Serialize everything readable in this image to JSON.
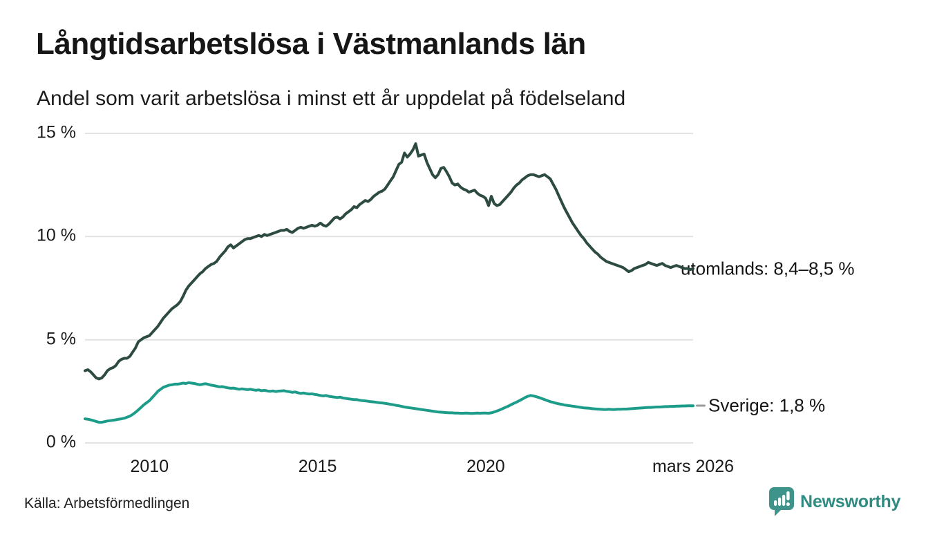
{
  "colors": {
    "utomlands_line": "#2d4b41",
    "sverige_line": "#1e9c8a",
    "grid": "#e2e2e2",
    "text": "#1a1a1a",
    "connector": "#9a9a9a",
    "brand": "#3e948a",
    "brand_text": "#2e8c82"
  },
  "footer": {
    "brand_name": "Newsworthy"
  },
  "chart_data": {
    "type": "line",
    "title": "Långtidsarbetslösa i Västmanlands län",
    "subtitle": "Andel som varit arbetslösa i minst ett år uppdelat på födelseland",
    "source": "Källa: Arbetsförmedlingen",
    "unit": "%",
    "frequency": "monthly",
    "x_start_decimal_year": 2008.0833,
    "x_end_decimal_year": 2026.1667,
    "x_ticks": [
      {
        "label": "2010",
        "t": 2010.0
      },
      {
        "label": "2015",
        "t": 2015.0
      },
      {
        "label": "2020",
        "t": 2020.0
      },
      {
        "label": "mars 2026",
        "t": 2026.1667
      }
    ],
    "y_ticks": [
      {
        "label": "0 %",
        "value": 0
      },
      {
        "label": "5 %",
        "value": 5
      },
      {
        "label": "10 %",
        "value": 10
      },
      {
        "label": "15 %",
        "value": 15
      }
    ],
    "ylim": [
      0,
      15
    ],
    "grid": true,
    "legend_position": "line-end-labels",
    "series": [
      {
        "name": "utomlands",
        "end_label": "utomlands: 8,4–8,5 %",
        "color": "#2d4b41",
        "values": [
          3.5,
          3.55,
          3.45,
          3.3,
          3.15,
          3.1,
          3.15,
          3.3,
          3.5,
          3.6,
          3.65,
          3.75,
          3.95,
          4.05,
          4.1,
          4.1,
          4.2,
          4.4,
          4.6,
          4.9,
          5.0,
          5.1,
          5.15,
          5.2,
          5.35,
          5.5,
          5.65,
          5.85,
          6.05,
          6.2,
          6.35,
          6.5,
          6.6,
          6.7,
          6.85,
          7.1,
          7.4,
          7.6,
          7.75,
          7.9,
          8.05,
          8.2,
          8.3,
          8.45,
          8.55,
          8.65,
          8.7,
          8.8,
          9.0,
          9.15,
          9.3,
          9.5,
          9.6,
          9.45,
          9.55,
          9.65,
          9.75,
          9.85,
          9.9,
          9.9,
          9.95,
          10.0,
          10.05,
          10.0,
          10.1,
          10.05,
          10.1,
          10.15,
          10.2,
          10.25,
          10.3,
          10.3,
          10.35,
          10.25,
          10.2,
          10.3,
          10.4,
          10.45,
          10.4,
          10.45,
          10.5,
          10.55,
          10.5,
          10.55,
          10.65,
          10.55,
          10.5,
          10.6,
          10.75,
          10.9,
          10.95,
          10.85,
          10.95,
          11.1,
          11.2,
          11.3,
          11.45,
          11.4,
          11.55,
          11.65,
          11.75,
          11.7,
          11.8,
          11.95,
          12.05,
          12.15,
          12.2,
          12.3,
          12.5,
          12.7,
          12.9,
          13.2,
          13.5,
          13.6,
          14.05,
          13.85,
          14.0,
          14.2,
          14.5,
          13.9,
          13.95,
          14.0,
          13.6,
          13.3,
          13.0,
          12.85,
          13.0,
          13.3,
          13.35,
          13.15,
          12.9,
          12.6,
          12.5,
          12.55,
          12.4,
          12.3,
          12.25,
          12.15,
          12.2,
          12.25,
          12.1,
          12.0,
          11.95,
          11.85,
          11.5,
          11.95,
          11.6,
          11.5,
          11.55,
          11.7,
          11.85,
          12.0,
          12.15,
          12.35,
          12.5,
          12.6,
          12.75,
          12.85,
          12.95,
          13.0,
          13.0,
          12.95,
          12.9,
          12.95,
          13.0,
          12.9,
          12.8,
          12.55,
          12.3,
          12.0,
          11.7,
          11.4,
          11.15,
          10.9,
          10.65,
          10.45,
          10.25,
          10.05,
          9.9,
          9.7,
          9.55,
          9.4,
          9.25,
          9.15,
          9.0,
          8.9,
          8.8,
          8.75,
          8.7,
          8.65,
          8.6,
          8.55,
          8.5,
          8.4,
          8.3,
          8.35,
          8.45,
          8.5,
          8.55,
          8.6,
          8.65,
          8.75,
          8.7,
          8.65,
          8.6,
          8.65,
          8.7,
          8.6,
          8.55,
          8.5,
          8.55,
          8.6,
          8.55,
          8.5,
          8.45,
          8.45,
          8.4,
          8.45
        ]
      },
      {
        "name": "Sverige",
        "end_label": "Sverige: 1,8 %",
        "color": "#1e9c8a",
        "values": [
          1.17,
          1.15,
          1.12,
          1.08,
          1.04,
          1.0,
          1.0,
          1.03,
          1.06,
          1.08,
          1.1,
          1.12,
          1.15,
          1.17,
          1.2,
          1.25,
          1.3,
          1.38,
          1.48,
          1.6,
          1.72,
          1.85,
          1.95,
          2.05,
          2.2,
          2.35,
          2.5,
          2.6,
          2.7,
          2.75,
          2.8,
          2.82,
          2.85,
          2.85,
          2.87,
          2.9,
          2.88,
          2.92,
          2.9,
          2.88,
          2.85,
          2.82,
          2.85,
          2.87,
          2.84,
          2.8,
          2.78,
          2.75,
          2.72,
          2.73,
          2.7,
          2.67,
          2.65,
          2.66,
          2.63,
          2.6,
          2.62,
          2.6,
          2.58,
          2.6,
          2.57,
          2.55,
          2.57,
          2.53,
          2.55,
          2.52,
          2.5,
          2.52,
          2.49,
          2.51,
          2.52,
          2.53,
          2.5,
          2.48,
          2.45,
          2.47,
          2.43,
          2.4,
          2.42,
          2.39,
          2.37,
          2.38,
          2.35,
          2.33,
          2.3,
          2.28,
          2.3,
          2.26,
          2.24,
          2.22,
          2.2,
          2.22,
          2.18,
          2.16,
          2.14,
          2.12,
          2.1,
          2.1,
          2.07,
          2.05,
          2.04,
          2.02,
          2.0,
          1.99,
          1.97,
          1.95,
          1.94,
          1.92,
          1.9,
          1.87,
          1.85,
          1.82,
          1.8,
          1.77,
          1.74,
          1.72,
          1.7,
          1.68,
          1.66,
          1.64,
          1.62,
          1.6,
          1.58,
          1.56,
          1.54,
          1.52,
          1.5,
          1.49,
          1.48,
          1.47,
          1.46,
          1.46,
          1.45,
          1.45,
          1.44,
          1.44,
          1.45,
          1.44,
          1.43,
          1.44,
          1.45,
          1.44,
          1.45,
          1.45,
          1.44,
          1.46,
          1.5,
          1.55,
          1.6,
          1.66,
          1.72,
          1.78,
          1.85,
          1.92,
          1.98,
          2.05,
          2.12,
          2.2,
          2.26,
          2.3,
          2.28,
          2.24,
          2.2,
          2.15,
          2.1,
          2.05,
          2.0,
          1.97,
          1.93,
          1.9,
          1.87,
          1.84,
          1.82,
          1.8,
          1.78,
          1.76,
          1.74,
          1.72,
          1.7,
          1.69,
          1.68,
          1.66,
          1.65,
          1.64,
          1.63,
          1.62,
          1.62,
          1.63,
          1.62,
          1.62,
          1.63,
          1.63,
          1.64,
          1.64,
          1.65,
          1.66,
          1.67,
          1.68,
          1.69,
          1.7,
          1.71,
          1.72,
          1.72,
          1.73,
          1.74,
          1.74,
          1.75,
          1.76,
          1.76,
          1.77,
          1.77,
          1.78,
          1.78,
          1.79,
          1.79,
          1.8,
          1.8,
          1.8
        ]
      }
    ]
  }
}
